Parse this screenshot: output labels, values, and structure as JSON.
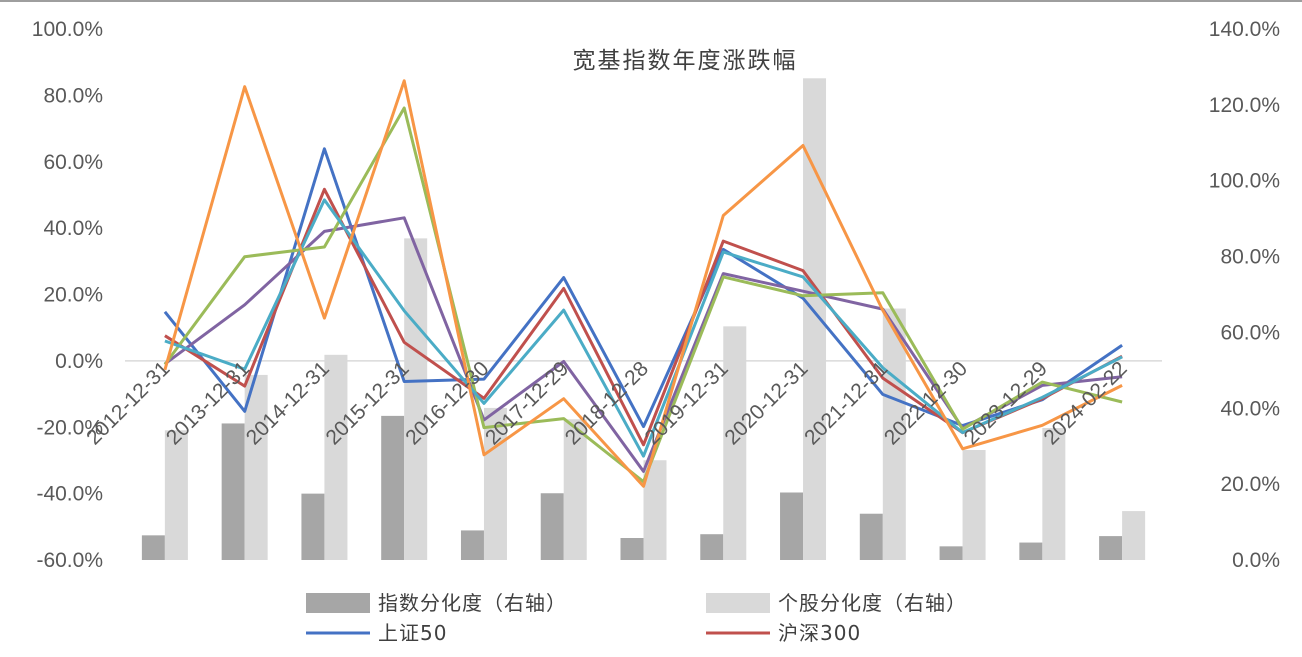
{
  "chart_data": {
    "type": "bar+line",
    "title": "宽基指数年度涨跌幅",
    "categories": [
      "2012-12-31",
      "2013-12-31",
      "2014-12-31",
      "2015-12-31",
      "2016-12-30",
      "2017-12-29",
      "2018-12-28",
      "2019-12-31",
      "2020-12-31",
      "2021-12-31",
      "2022-12-30",
      "2023-12-29",
      "2024-02-22"
    ],
    "y_left": {
      "ticks": [
        "100.0%",
        "80.0%",
        "60.0%",
        "40.0%",
        "20.0%",
        "0.0%",
        "-20.0%",
        "-40.0%",
        "-60.0%"
      ],
      "ylim": [
        -60,
        100
      ]
    },
    "y_right": {
      "ticks": [
        "140.0%",
        "120.0%",
        "100.0%",
        "80.0%",
        "60.0%",
        "40.0%",
        "20.0%",
        "0.0%"
      ],
      "ylim": [
        0,
        140
      ]
    },
    "grid": false,
    "legend_position": "bottom",
    "bar_series": [
      {
        "name": "指数分化度（右轴）",
        "axis": "right",
        "color": "#a6a6a6",
        "values": [
          6.5,
          36,
          17.5,
          38,
          7.8,
          17.6,
          5.8,
          6.8,
          17.8,
          12.2,
          3.6,
          4.6,
          6.3
        ]
      },
      {
        "name": "个股分化度（右轴）",
        "axis": "right",
        "color": "#d9d9d9",
        "values": [
          34.2,
          48.8,
          54.1,
          84.8,
          40.1,
          37.1,
          26.3,
          61.6,
          127,
          66.3,
          29,
          34.8,
          12.9
        ]
      }
    ],
    "line_series": [
      {
        "name": "上证50",
        "axis": "left",
        "color": "#4472c4",
        "values": [
          14.8,
          -15.2,
          63.9,
          -6.2,
          -5.5,
          25.1,
          -19.8,
          33.6,
          18.9,
          -10.1,
          -19.5,
          -11.7,
          4.7
        ]
      },
      {
        "name": "沪深300",
        "axis": "left",
        "color": "#c0504d",
        "values": [
          7.6,
          -7.6,
          51.7,
          5.6,
          -11.3,
          21.8,
          -25.3,
          36.1,
          27.2,
          -5.2,
          -21.6,
          -11.4,
          1.4
        ]
      },
      {
        "axis": "left",
        "color": "#8064a2",
        "values": [
          -0.9,
          16.9,
          39,
          43.1,
          -17.8,
          -0.2,
          -33.3,
          26.3,
          21,
          15.6,
          -20.3,
          -7.4,
          -4.8
        ]
      },
      {
        "axis": "left",
        "color": "#9bbb59",
        "values": [
          -1.1,
          31.4,
          34.3,
          76.2,
          -20.1,
          -17.4,
          -36.4,
          25.3,
          19.6,
          20.5,
          -20.6,
          -6.4,
          -12.4
        ]
      },
      {
        "axis": "left",
        "color": "#4bacc6",
        "values": [
          6,
          -2.5,
          48.5,
          15.1,
          -12.8,
          15.3,
          -28.7,
          32.8,
          25.3,
          -2.1,
          -21.6,
          -11,
          1.2
        ]
      },
      {
        "axis": "left",
        "color": "#f79646",
        "values": [
          -2.7,
          82.6,
          12.9,
          84.4,
          -28.3,
          -11.4,
          -37.8,
          43.8,
          64.9,
          15.2,
          -26.5,
          -19.4,
          -7.4
        ]
      }
    ],
    "legend": [
      {
        "name": "指数分化度（右轴）",
        "swatch": "bar",
        "color": "#a6a6a6"
      },
      {
        "name": "个股分化度（右轴）",
        "swatch": "bar",
        "color": "#d9d9d9"
      },
      {
        "name": "上证50",
        "swatch": "line",
        "color": "#4472c4"
      },
      {
        "name": "沪深300",
        "swatch": "line",
        "color": "#c0504d"
      }
    ]
  }
}
